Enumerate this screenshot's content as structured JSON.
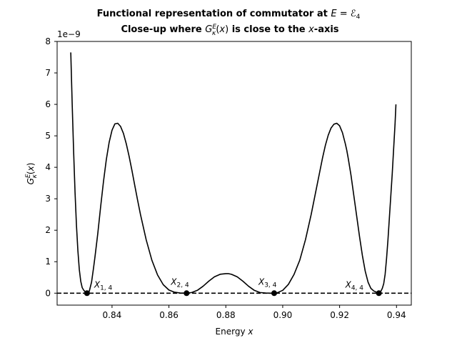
{
  "chart_data": {
    "type": "line",
    "title": "Functional representation of commutator at E = ℰ4",
    "subtitle": "Close-up where G_κ^E(x) is close to the x-axis",
    "xlabel": "Energy x",
    "ylabel": "G_κ^E(x)",
    "y_offset_label": "1e−9",
    "xlim": [
      0.8207,
      0.9452
    ],
    "ylim": [
      -0.38,
      8.0
    ],
    "xticks": [
      0.84,
      0.86,
      0.88,
      0.9,
      0.92,
      0.94
    ],
    "xtick_labels": [
      "0.84",
      "0.86",
      "0.88",
      "0.90",
      "0.92",
      "0.94"
    ],
    "yticks": [
      0,
      1,
      2,
      3,
      4,
      5,
      6,
      7,
      8
    ],
    "ytick_labels": [
      "0",
      "1",
      "2",
      "3",
      "4",
      "5",
      "6",
      "7",
      "8"
    ],
    "grid": false,
    "series": [
      {
        "color": "#000000",
        "style": "solid",
        "x": [
          0.8255,
          0.826,
          0.8265,
          0.827,
          0.8275,
          0.828,
          0.8285,
          0.829,
          0.8295,
          0.83,
          0.8305,
          0.8312,
          0.832,
          0.8328,
          0.8335,
          0.834,
          0.835,
          0.836,
          0.837,
          0.838,
          0.839,
          0.84,
          0.841,
          0.842,
          0.843,
          0.844,
          0.845,
          0.846,
          0.847,
          0.848,
          0.849,
          0.85,
          0.852,
          0.854,
          0.856,
          0.858,
          0.86,
          0.862,
          0.864,
          0.866,
          0.868,
          0.87,
          0.872,
          0.874,
          0.876,
          0.878,
          0.88,
          0.881,
          0.882,
          0.884,
          0.886,
          0.888,
          0.89,
          0.892,
          0.894,
          0.896,
          0.897,
          0.898,
          0.9,
          0.902,
          0.904,
          0.906,
          0.908,
          0.91,
          0.912,
          0.913,
          0.914,
          0.915,
          0.916,
          0.917,
          0.918,
          0.919,
          0.92,
          0.921,
          0.922,
          0.9225,
          0.923,
          0.924,
          0.925,
          0.926,
          0.927,
          0.928,
          0.929,
          0.93,
          0.931,
          0.932,
          0.933,
          0.9338,
          0.9345,
          0.935,
          0.9355,
          0.936,
          0.9365,
          0.937,
          0.9375,
          0.938,
          0.9385,
          0.939,
          0.9395,
          0.9398
        ],
        "y": [
          7.65,
          6.0,
          4.5,
          3.2,
          2.15,
          1.35,
          0.75,
          0.38,
          0.18,
          0.1,
          0.05,
          0.0,
          0.06,
          0.35,
          0.8,
          1.15,
          1.9,
          2.75,
          3.55,
          4.25,
          4.8,
          5.18,
          5.38,
          5.4,
          5.3,
          5.08,
          4.75,
          4.35,
          3.9,
          3.42,
          2.95,
          2.5,
          1.7,
          1.05,
          0.58,
          0.27,
          0.1,
          0.03,
          0.005,
          0.0,
          0.02,
          0.09,
          0.22,
          0.38,
          0.52,
          0.6,
          0.62,
          0.62,
          0.6,
          0.52,
          0.38,
          0.22,
          0.09,
          0.02,
          0.005,
          0.0,
          0.0,
          0.01,
          0.09,
          0.28,
          0.6,
          1.05,
          1.7,
          2.5,
          3.4,
          3.85,
          4.3,
          4.7,
          5.02,
          5.25,
          5.37,
          5.4,
          5.32,
          5.1,
          4.75,
          4.55,
          4.3,
          3.75,
          3.1,
          2.45,
          1.8,
          1.2,
          0.7,
          0.35,
          0.15,
          0.07,
          0.03,
          0.0,
          0.06,
          0.15,
          0.3,
          0.6,
          1.1,
          1.7,
          2.4,
          3.1,
          3.8,
          4.6,
          5.4,
          6.0
        ]
      }
    ],
    "reference_line": {
      "y": 0,
      "style": "dashed",
      "color": "#000000"
    },
    "roots": [
      {
        "x": 0.8312,
        "label": "X1,4"
      },
      {
        "x": 0.8662,
        "label": "X2,4"
      },
      {
        "x": 0.897,
        "label": "X3,4"
      },
      {
        "x": 0.9338,
        "label": "X4,4"
      }
    ]
  }
}
